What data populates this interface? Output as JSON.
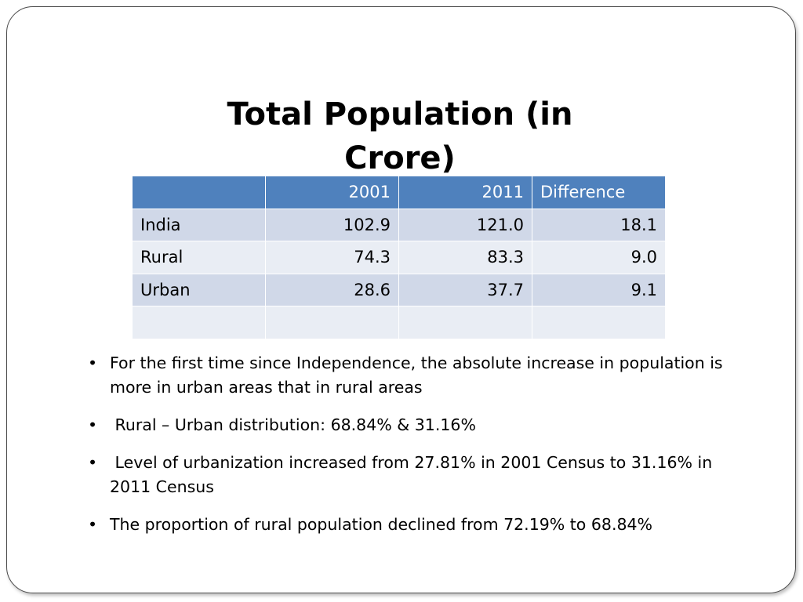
{
  "title": "Total Population (in Crore)",
  "table": {
    "headers": [
      "",
      "2001",
      "2011",
      "Difference"
    ],
    "rows": [
      [
        "India",
        "102.9",
        "121.0",
        "18.1"
      ],
      [
        "Rural",
        "74.3",
        "83.3",
        "9.0"
      ],
      [
        "Urban",
        "28.6",
        "37.7",
        "9.1"
      ],
      [
        "",
        "",
        "",
        ""
      ]
    ]
  },
  "bullets": [
    "For the first time since Independence, the absolute increase in population is more in urban areas that in rural areas",
    " Rural – Urban distribution: 68.84% & 31.16%",
    " Level of urbanization increased from 27.81% in 2001 Census to 31.16% in 2011 Census",
    "The proportion of rural population declined from 72.19% to 68.84%"
  ],
  "bullet_glyph": "•",
  "colors": {
    "header_bg": "#4f81bd",
    "row_odd_bg": "#d0d8e8",
    "row_even_bg": "#e9edf4"
  }
}
